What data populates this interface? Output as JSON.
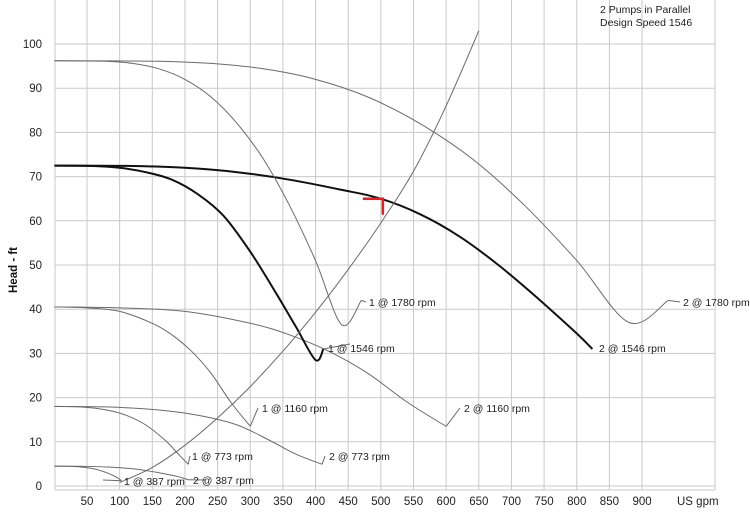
{
  "chart_data": {
    "type": "line",
    "title_lines": [
      "2 Pumps in Parallel",
      "Design Speed 1546"
    ],
    "ylabel": "Head - ft",
    "xlabel": "US gpm",
    "xlim": [
      0,
      1000
    ],
    "ylim": [
      0,
      108
    ],
    "x_ticks": [
      50,
      100,
      150,
      200,
      250,
      300,
      350,
      400,
      450,
      500,
      550,
      600,
      650,
      700,
      750,
      800,
      850,
      900
    ],
    "y_ticks": [
      0,
      10,
      20,
      30,
      40,
      50,
      60,
      70,
      80,
      90,
      100
    ],
    "grid": true,
    "series": [
      {
        "name": "1 @ 387 rpm",
        "label": "1 @ 387 rpm",
        "bold": false,
        "x": [
          0,
          20,
          40,
          60,
          80,
          95,
          103
        ],
        "y": [
          4.5,
          4.45,
          4.3,
          3.9,
          3.0,
          2.0,
          1.2
        ]
      },
      {
        "name": "2 @ 387 rpm",
        "label": "2 @ 387 rpm",
        "bold": false,
        "x": [
          0,
          40,
          80,
          120,
          160,
          190,
          205
        ],
        "y": [
          4.5,
          4.45,
          4.3,
          3.9,
          3.0,
          2.1,
          1.4
        ]
      },
      {
        "name": "1 @ 773 rpm",
        "label": "1 @ 773 rpm",
        "bold": false,
        "x": [
          0,
          40,
          80,
          110,
          140,
          170,
          190,
          205
        ],
        "y": [
          18,
          17.9,
          17.2,
          16.0,
          13.8,
          10.3,
          7.2,
          4.9
        ]
      },
      {
        "name": "2 @ 773 rpm",
        "label": "2 @ 773 rpm",
        "bold": false,
        "x": [
          0,
          80,
          160,
          220,
          280,
          330,
          370,
          410
        ],
        "y": [
          18,
          17.9,
          17.2,
          16.0,
          13.8,
          10.3,
          7.2,
          4.9
        ]
      },
      {
        "name": "1 @ 1160 rpm",
        "label": "1 @ 1160 rpm",
        "bold": false,
        "x": [
          0,
          50,
          100,
          150,
          180,
          210,
          240,
          270,
          300
        ],
        "y": [
          40.5,
          40.3,
          39.5,
          36.8,
          34.2,
          30.5,
          25.5,
          19.0,
          13.5
        ]
      },
      {
        "name": "2 @ 1160 rpm",
        "label": "2 @ 1160 rpm",
        "bold": false,
        "x": [
          0,
          100,
          200,
          300,
          360,
          420,
          480,
          540,
          600
        ],
        "y": [
          40.5,
          40.3,
          39.5,
          36.8,
          34.2,
          30.5,
          25.5,
          19.0,
          13.5
        ]
      },
      {
        "name": "1 @ 1546 rpm",
        "label": "1 @ 1546 rpm",
        "bold": true,
        "x": [
          0,
          60,
          100,
          140,
          180,
          220,
          260,
          300,
          340,
          370,
          400,
          412
        ],
        "y": [
          72.5,
          72.4,
          72.0,
          71.0,
          69.3,
          66.0,
          61.0,
          53.0,
          43.5,
          36.0,
          28.5,
          31.0
        ]
      },
      {
        "name": "2 @ 1546 rpm",
        "label": "2 @ 1546 rpm",
        "bold": true,
        "x": [
          0,
          120,
          200,
          280,
          360,
          440,
          500,
          560,
          620,
          680,
          740,
          800,
          824
        ],
        "y": [
          72.5,
          72.4,
          72.0,
          71.0,
          69.3,
          67.0,
          65.0,
          61.5,
          56.5,
          50.0,
          42.5,
          34.5,
          31.0
        ]
      },
      {
        "name": "1 @ 1780 rpm",
        "label": "1 @ 1780 rpm",
        "bold": false,
        "x": [
          0,
          80,
          120,
          160,
          200,
          240,
          280,
          320,
          360,
          400,
          440,
          470
        ],
        "y": [
          96.2,
          96.1,
          95.6,
          94.4,
          92.0,
          88.0,
          82.0,
          74.0,
          63.5,
          51.0,
          36.5,
          42.0
        ]
      },
      {
        "name": "2 @ 1780 rpm",
        "label": "2 @ 1780 rpm",
        "bold": false,
        "x": [
          0,
          160,
          240,
          320,
          400,
          480,
          560,
          640,
          720,
          800,
          880,
          940
        ],
        "y": [
          96.2,
          96.1,
          95.6,
          94.4,
          92.0,
          88.0,
          82.0,
          74.0,
          63.5,
          51.0,
          37.0,
          42.0
        ]
      },
      {
        "name": "System curve",
        "label": "",
        "bold": false,
        "x": [
          100,
          150,
          200,
          250,
          300,
          350,
          400,
          450,
          500,
          550,
          600,
          650
        ],
        "y": [
          0.8,
          4.2,
          9.2,
          15.4,
          22.5,
          30.5,
          39.3,
          49.0,
          59.5,
          71.2,
          86.0,
          103.0
        ]
      }
    ],
    "marker": {
      "label": "Operating point",
      "x": 500,
      "y": 65,
      "color": "#ee1c1c"
    },
    "colors": {
      "bold_curve": "#111111",
      "thin_curve": "#6a6a6a",
      "grid": "#c9c9c9"
    }
  }
}
